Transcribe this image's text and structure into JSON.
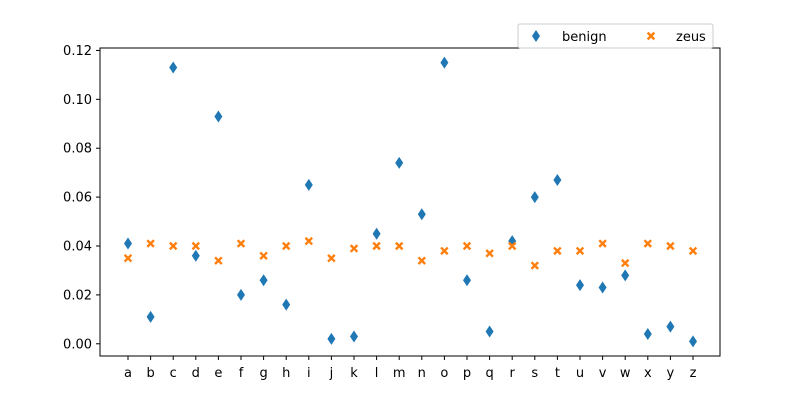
{
  "chart_data": {
    "type": "scatter",
    "categories": [
      "a",
      "b",
      "c",
      "d",
      "e",
      "f",
      "g",
      "h",
      "i",
      "j",
      "k",
      "l",
      "m",
      "n",
      "o",
      "p",
      "q",
      "r",
      "s",
      "t",
      "u",
      "v",
      "w",
      "x",
      "y",
      "z"
    ],
    "series": [
      {
        "name": "benign",
        "color": "#1f77b4",
        "marker": "diamond",
        "values": [
          0.041,
          0.011,
          0.113,
          0.036,
          0.093,
          0.02,
          0.026,
          0.016,
          0.065,
          0.002,
          0.003,
          0.045,
          0.074,
          0.053,
          0.115,
          0.026,
          0.005,
          0.042,
          0.06,
          0.067,
          0.024,
          0.023,
          0.028,
          0.004,
          0.007,
          0.001
        ]
      },
      {
        "name": "zeus",
        "color": "#ff7f0e",
        "marker": "x-filled",
        "values": [
          0.035,
          0.041,
          0.04,
          0.04,
          0.034,
          0.041,
          0.036,
          0.04,
          0.042,
          0.035,
          0.039,
          0.04,
          0.04,
          0.034,
          0.038,
          0.04,
          0.037,
          0.04,
          0.032,
          0.038,
          0.038,
          0.041,
          0.033,
          0.041,
          0.04,
          0.038
        ]
      }
    ],
    "yticks": [
      "0.00",
      "0.02",
      "0.04",
      "0.06",
      "0.08",
      "0.10",
      "0.12"
    ],
    "ylim": [
      -0.005,
      0.121
    ],
    "legend_position": "top-right, outside axes, 2 columns",
    "grid": false
  }
}
